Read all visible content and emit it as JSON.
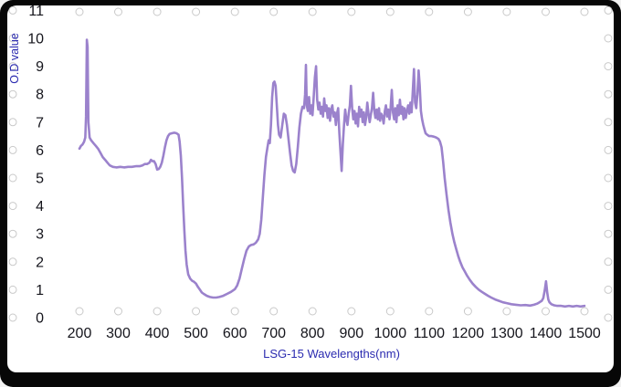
{
  "frame": {
    "outer_bg": "#070707",
    "panel_bg": "#ffffff"
  },
  "chart_data": {
    "type": "line",
    "title": "",
    "xlabel": "LSG-15  Wavelengths(nm)",
    "ylabel": "O.D value",
    "xlim": [
      200,
      1500
    ],
    "ylim": [
      0,
      11
    ],
    "x_ticks": [
      200,
      300,
      400,
      500,
      600,
      700,
      800,
      900,
      1000,
      1100,
      1200,
      1300,
      1400,
      1500
    ],
    "y_ticks": [
      0,
      1,
      2,
      3,
      4,
      5,
      6,
      7,
      8,
      9,
      10,
      11
    ],
    "grid": "edge-dot-markers",
    "legend": "none",
    "line_color": "#9b82cc",
    "axis_title_color": "#2b2bb0",
    "tick_label_color": "#15151c",
    "grid_marker_color": "#c9c9c9",
    "series": [
      {
        "name": "LSG-15 optical density",
        "points": [
          [
            200,
            6.05
          ],
          [
            204,
            6.15
          ],
          [
            208,
            6.2
          ],
          [
            212,
            6.3
          ],
          [
            215,
            6.45
          ],
          [
            217,
            7.2
          ],
          [
            219,
            9.95
          ],
          [
            221,
            9.7
          ],
          [
            223,
            7.0
          ],
          [
            226,
            6.45
          ],
          [
            230,
            6.35
          ],
          [
            236,
            6.25
          ],
          [
            242,
            6.15
          ],
          [
            248,
            6.05
          ],
          [
            254,
            5.9
          ],
          [
            260,
            5.75
          ],
          [
            266,
            5.65
          ],
          [
            272,
            5.55
          ],
          [
            278,
            5.45
          ],
          [
            286,
            5.4
          ],
          [
            295,
            5.38
          ],
          [
            305,
            5.4
          ],
          [
            315,
            5.38
          ],
          [
            325,
            5.4
          ],
          [
            335,
            5.4
          ],
          [
            345,
            5.42
          ],
          [
            355,
            5.42
          ],
          [
            362,
            5.45
          ],
          [
            368,
            5.5
          ],
          [
            374,
            5.5
          ],
          [
            380,
            5.55
          ],
          [
            384,
            5.65
          ],
          [
            388,
            5.6
          ],
          [
            392,
            5.6
          ],
          [
            396,
            5.5
          ],
          [
            400,
            5.3
          ],
          [
            404,
            5.32
          ],
          [
            408,
            5.4
          ],
          [
            412,
            5.55
          ],
          [
            416,
            5.8
          ],
          [
            420,
            6.1
          ],
          [
            424,
            6.35
          ],
          [
            428,
            6.5
          ],
          [
            432,
            6.58
          ],
          [
            438,
            6.6
          ],
          [
            444,
            6.62
          ],
          [
            450,
            6.6
          ],
          [
            455,
            6.55
          ],
          [
            458,
            6.3
          ],
          [
            461,
            5.8
          ],
          [
            464,
            5.0
          ],
          [
            467,
            4.0
          ],
          [
            470,
            3.1
          ],
          [
            473,
            2.4
          ],
          [
            476,
            1.9
          ],
          [
            480,
            1.55
          ],
          [
            485,
            1.4
          ],
          [
            490,
            1.32
          ],
          [
            495,
            1.28
          ],
          [
            500,
            1.22
          ],
          [
            505,
            1.1
          ],
          [
            510,
            1.0
          ],
          [
            515,
            0.9
          ],
          [
            520,
            0.85
          ],
          [
            528,
            0.78
          ],
          [
            536,
            0.74
          ],
          [
            544,
            0.72
          ],
          [
            552,
            0.72
          ],
          [
            560,
            0.74
          ],
          [
            570,
            0.78
          ],
          [
            580,
            0.85
          ],
          [
            590,
            0.92
          ],
          [
            600,
            1.02
          ],
          [
            606,
            1.15
          ],
          [
            612,
            1.4
          ],
          [
            618,
            1.75
          ],
          [
            624,
            2.1
          ],
          [
            630,
            2.4
          ],
          [
            636,
            2.55
          ],
          [
            642,
            2.6
          ],
          [
            648,
            2.62
          ],
          [
            654,
            2.68
          ],
          [
            660,
            2.8
          ],
          [
            664,
            3.0
          ],
          [
            668,
            3.5
          ],
          [
            672,
            4.3
          ],
          [
            676,
            5.1
          ],
          [
            680,
            5.75
          ],
          [
            684,
            6.1
          ],
          [
            687,
            6.35
          ],
          [
            690,
            6.25
          ],
          [
            693,
            6.9
          ],
          [
            696,
            7.9
          ],
          [
            699,
            8.4
          ],
          [
            702,
            8.45
          ],
          [
            705,
            8.3
          ],
          [
            708,
            7.6
          ],
          [
            711,
            6.9
          ],
          [
            714,
            6.55
          ],
          [
            718,
            6.45
          ],
          [
            722,
            6.9
          ],
          [
            726,
            7.3
          ],
          [
            730,
            7.25
          ],
          [
            734,
            6.9
          ],
          [
            738,
            6.4
          ],
          [
            742,
            5.9
          ],
          [
            746,
            5.45
          ],
          [
            750,
            5.25
          ],
          [
            754,
            5.2
          ],
          [
            758,
            5.5
          ],
          [
            762,
            6.1
          ],
          [
            766,
            6.8
          ],
          [
            770,
            7.3
          ],
          [
            774,
            7.55
          ],
          [
            778,
            7.5
          ],
          [
            781,
            8.0
          ],
          [
            783,
            9.05
          ],
          [
            785,
            7.6
          ],
          [
            788,
            7.4
          ],
          [
            791,
            7.9
          ],
          [
            794,
            7.3
          ],
          [
            797,
            7.6
          ],
          [
            800,
            7.25
          ],
          [
            803,
            7.9
          ],
          [
            806,
            8.6
          ],
          [
            809,
            9.0
          ],
          [
            812,
            7.8
          ],
          [
            815,
            7.45
          ],
          [
            818,
            7.7
          ],
          [
            821,
            7.3
          ],
          [
            824,
            7.55
          ],
          [
            827,
            7.2
          ],
          [
            830,
            7.85
          ],
          [
            833,
            7.4
          ],
          [
            836,
            7.6
          ],
          [
            839,
            7.15
          ],
          [
            842,
            7.5
          ],
          [
            845,
            7.05
          ],
          [
            848,
            7.45
          ],
          [
            851,
            7.6
          ],
          [
            854,
            7.2
          ],
          [
            857,
            7.35
          ],
          [
            860,
            6.9
          ],
          [
            863,
            7.3
          ],
          [
            866,
            7.5
          ],
          [
            869,
            6.6
          ],
          [
            872,
            5.9
          ],
          [
            875,
            5.25
          ],
          [
            878,
            6.2
          ],
          [
            881,
            6.9
          ],
          [
            884,
            7.45
          ],
          [
            887,
            7.1
          ],
          [
            890,
            6.9
          ],
          [
            893,
            7.3
          ],
          [
            896,
            7.6
          ],
          [
            899,
            8.3
          ],
          [
            902,
            7.5
          ],
          [
            905,
            7.1
          ],
          [
            908,
            7.4
          ],
          [
            911,
            6.95
          ],
          [
            914,
            7.3
          ],
          [
            917,
            6.85
          ],
          [
            920,
            7.55
          ],
          [
            923,
            7.2
          ],
          [
            926,
            7.45
          ],
          [
            929,
            7.0
          ],
          [
            932,
            7.35
          ],
          [
            935,
            6.9
          ],
          [
            938,
            7.15
          ],
          [
            941,
            7.7
          ],
          [
            944,
            7.3
          ],
          [
            947,
            7.0
          ],
          [
            950,
            7.25
          ],
          [
            953,
            7.5
          ],
          [
            956,
            8.05
          ],
          [
            959,
            7.4
          ],
          [
            962,
            7.15
          ],
          [
            965,
            7.45
          ],
          [
            968,
            7.1
          ],
          [
            971,
            7.5
          ],
          [
            974,
            7.05
          ],
          [
            977,
            7.3
          ],
          [
            980,
            7.2
          ],
          [
            983,
            6.95
          ],
          [
            986,
            7.4
          ],
          [
            989,
            7.6
          ],
          [
            992,
            7.2
          ],
          [
            995,
            7.45
          ],
          [
            998,
            7.1
          ],
          [
            1001,
            7.5
          ],
          [
            1004,
            8.15
          ],
          [
            1007,
            7.35
          ],
          [
            1010,
            7.1
          ],
          [
            1013,
            7.5
          ],
          [
            1016,
            7.0
          ],
          [
            1019,
            7.6
          ],
          [
            1022,
            7.25
          ],
          [
            1025,
            7.8
          ],
          [
            1028,
            7.3
          ],
          [
            1031,
            7.55
          ],
          [
            1034,
            7.1
          ],
          [
            1037,
            7.5
          ],
          [
            1040,
            7.15
          ],
          [
            1043,
            7.4
          ],
          [
            1046,
            7.6
          ],
          [
            1049,
            7.3
          ],
          [
            1052,
            7.7
          ],
          [
            1055,
            7.35
          ],
          [
            1058,
            8.1
          ],
          [
            1061,
            8.9
          ],
          [
            1064,
            7.7
          ],
          [
            1067,
            7.5
          ],
          [
            1070,
            8.0
          ],
          [
            1073,
            8.85
          ],
          [
            1076,
            8.3
          ],
          [
            1079,
            7.4
          ],
          [
            1082,
            7.1
          ],
          [
            1085,
            6.9
          ],
          [
            1088,
            6.75
          ],
          [
            1091,
            6.6
          ],
          [
            1095,
            6.55
          ],
          [
            1100,
            6.5
          ],
          [
            1106,
            6.5
          ],
          [
            1112,
            6.48
          ],
          [
            1118,
            6.45
          ],
          [
            1124,
            6.4
          ],
          [
            1128,
            6.3
          ],
          [
            1132,
            6.1
          ],
          [
            1136,
            5.6
          ],
          [
            1140,
            5.0
          ],
          [
            1145,
            4.4
          ],
          [
            1150,
            3.85
          ],
          [
            1155,
            3.4
          ],
          [
            1160,
            3.0
          ],
          [
            1165,
            2.7
          ],
          [
            1170,
            2.45
          ],
          [
            1175,
            2.2
          ],
          [
            1180,
            2.0
          ],
          [
            1186,
            1.8
          ],
          [
            1192,
            1.65
          ],
          [
            1198,
            1.5
          ],
          [
            1205,
            1.35
          ],
          [
            1212,
            1.22
          ],
          [
            1220,
            1.1
          ],
          [
            1228,
            1.0
          ],
          [
            1236,
            0.92
          ],
          [
            1244,
            0.85
          ],
          [
            1252,
            0.78
          ],
          [
            1260,
            0.72
          ],
          [
            1270,
            0.65
          ],
          [
            1280,
            0.6
          ],
          [
            1290,
            0.55
          ],
          [
            1300,
            0.52
          ],
          [
            1312,
            0.48
          ],
          [
            1324,
            0.46
          ],
          [
            1336,
            0.44
          ],
          [
            1348,
            0.45
          ],
          [
            1360,
            0.43
          ],
          [
            1370,
            0.46
          ],
          [
            1378,
            0.5
          ],
          [
            1384,
            0.55
          ],
          [
            1390,
            0.6
          ],
          [
            1394,
            0.7
          ],
          [
            1398,
            1.0
          ],
          [
            1401,
            1.3
          ],
          [
            1404,
            0.9
          ],
          [
            1407,
            0.65
          ],
          [
            1410,
            0.55
          ],
          [
            1415,
            0.48
          ],
          [
            1422,
            0.44
          ],
          [
            1430,
            0.42
          ],
          [
            1440,
            0.42
          ],
          [
            1450,
            0.4
          ],
          [
            1460,
            0.42
          ],
          [
            1470,
            0.4
          ],
          [
            1480,
            0.42
          ],
          [
            1490,
            0.4
          ],
          [
            1500,
            0.42
          ]
        ]
      }
    ]
  }
}
